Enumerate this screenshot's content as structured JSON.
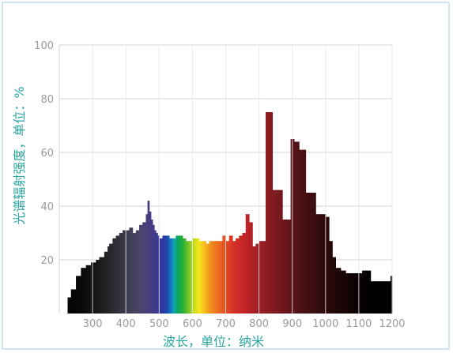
{
  "chart_data": {
    "type": "area",
    "title": "",
    "xlabel": "波长，单位：纳米",
    "ylabel": "光谱辐射强度，单位：%",
    "xlim": [
      200,
      1200
    ],
    "ylim": [
      0,
      100
    ],
    "xticks": [
      "300",
      "400",
      "500",
      "600",
      "700",
      "800",
      "900",
      "1000",
      "1100",
      "1200"
    ],
    "yticks": [
      "20",
      "40",
      "60",
      "80",
      "100"
    ],
    "grid": true,
    "x": [
      205,
      225,
      235,
      250,
      265,
      280,
      295,
      310,
      320,
      335,
      345,
      350,
      360,
      370,
      380,
      390,
      400,
      410,
      420,
      430,
      440,
      450,
      460,
      465,
      470,
      475,
      480,
      485,
      490,
      495,
      500,
      510,
      520,
      530,
      540,
      550,
      560,
      570,
      580,
      590,
      600,
      610,
      620,
      630,
      640,
      650,
      660,
      670,
      680,
      690,
      700,
      710,
      720,
      730,
      740,
      750,
      760,
      770,
      780,
      785,
      790,
      800,
      810,
      820,
      830,
      840,
      855,
      870,
      880,
      895,
      905,
      920,
      930,
      940,
      955,
      970,
      980,
      1000,
      1010,
      1020,
      1030,
      1045,
      1055,
      1060,
      1070,
      1080,
      1090,
      1100,
      1110,
      1120,
      1135,
      1155,
      1175,
      1195,
      1200
    ],
    "values": [
      0,
      6,
      9,
      14,
      17,
      18,
      19,
      20,
      21,
      23,
      25,
      26,
      28,
      29,
      30,
      31,
      31,
      32,
      30,
      31,
      33,
      34,
      37,
      42,
      38,
      35,
      33,
      31,
      30,
      29,
      28,
      29,
      29,
      28,
      28,
      29,
      29,
      28,
      27,
      27,
      28,
      28,
      27,
      27,
      26,
      27,
      27,
      27,
      27,
      29,
      27,
      29,
      27,
      28,
      29,
      30,
      37,
      34,
      25,
      25,
      26,
      27,
      27,
      75,
      75,
      46,
      46,
      35,
      35,
      65,
      64,
      61,
      61,
      45,
      45,
      37,
      37,
      36,
      27,
      21,
      17,
      16,
      16,
      15,
      15,
      15,
      15,
      15,
      16,
      16,
      12,
      12,
      12,
      14,
      14
    ]
  }
}
